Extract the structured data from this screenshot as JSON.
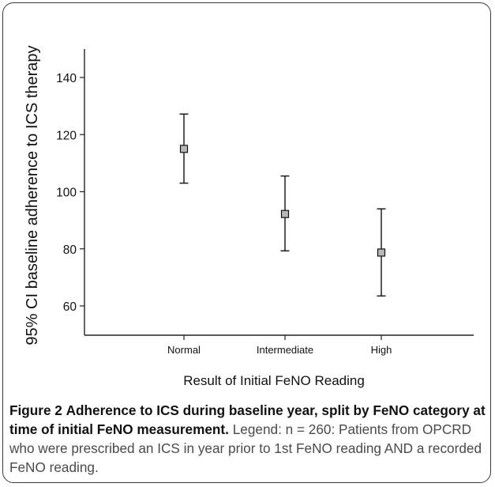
{
  "chart_data": {
    "type": "errorbar",
    "categories": [
      "Normal",
      "Intermediate",
      "High"
    ],
    "series": [
      {
        "mean": [
          115,
          92.2,
          78.7
        ],
        "ci_low": [
          103,
          79.3,
          63.5
        ],
        "ci_high": [
          127.2,
          105.5,
          94
        ]
      }
    ],
    "xlabel": "Result of Initial FeNO Reading",
    "ylabel": "95% CI baseline adherence to ICS therapy",
    "yticks": [
      60,
      80,
      100,
      120,
      140
    ],
    "ylim": [
      50,
      150
    ],
    "grid": false,
    "marker_color": "#b8b8b8"
  },
  "caption": {
    "label": "Figure 2",
    "heading": "Adherence to ICS during baseline year, split by FeNO category at time of initial FeNO measurement.",
    "body": "Legend: n = 260: Patients from OPCRD who were prescribed an ICS in year prior to 1st FeNO reading AND a recorded FeNO reading."
  }
}
